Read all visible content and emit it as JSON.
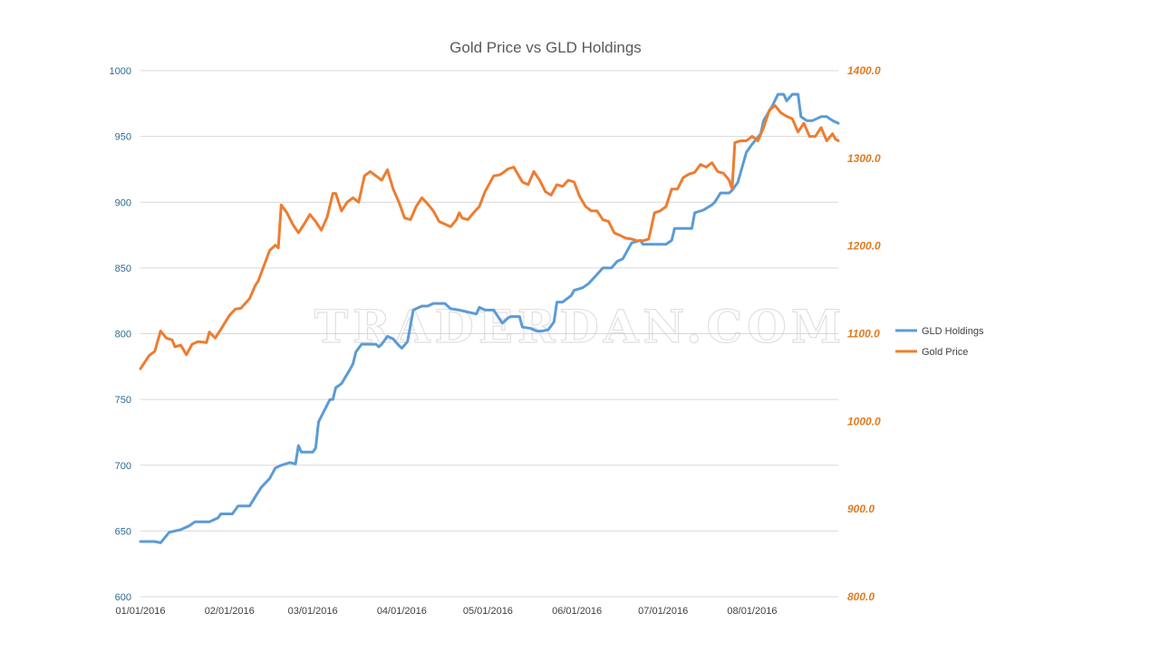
{
  "chart_data": {
    "type": "line",
    "title": "Gold Price vs GLD Holdings",
    "watermark": "TRADERDAN.COM",
    "x_range": [
      "01/01/2016",
      "08/31/2016"
    ],
    "x_ticks": [
      "01/01/2016",
      "02/01/2016",
      "03/01/2016",
      "04/01/2016",
      "05/01/2016",
      "06/01/2016",
      "07/01/2016",
      "08/01/2016"
    ],
    "y_left": {
      "min": 600,
      "max": 1000,
      "step": 50,
      "ticks": [
        "1000",
        "950",
        "900",
        "850",
        "800",
        "750",
        "700",
        "650",
        "600"
      ],
      "color": "#2e6b93"
    },
    "y_right": {
      "min": 800,
      "max": 1400,
      "step": 100,
      "ticks": [
        "1400.0",
        "1300.0",
        "1200.0",
        "1100.0",
        "1000.0",
        "900.0",
        "800.0"
      ],
      "color": "#e07b21"
    },
    "grid": true,
    "legend_position": "right",
    "series": [
      {
        "name": "GLD Holdings",
        "axis": "left",
        "color": "#5b9bd5",
        "points": [
          [
            "01/01/2016",
            642
          ],
          [
            "01/06/2016",
            642
          ],
          [
            "01/08/2016",
            641
          ],
          [
            "01/11/2016",
            649
          ],
          [
            "01/13/2016",
            650
          ],
          [
            "01/15/2016",
            651
          ],
          [
            "01/18/2016",
            654
          ],
          [
            "01/20/2016",
            657
          ],
          [
            "01/25/2016",
            657
          ],
          [
            "01/28/2016",
            660
          ],
          [
            "01/29/2016",
            663
          ],
          [
            "02/02/2016",
            663
          ],
          [
            "02/04/2016",
            669
          ],
          [
            "02/08/2016",
            669
          ],
          [
            "02/10/2016",
            676
          ],
          [
            "02/12/2016",
            683
          ],
          [
            "02/15/2016",
            690
          ],
          [
            "02/17/2016",
            698
          ],
          [
            "02/19/2016",
            700
          ],
          [
            "02/22/2016",
            702
          ],
          [
            "02/24/2016",
            701
          ],
          [
            "02/25/2016",
            715
          ],
          [
            "02/26/2016",
            710
          ],
          [
            "03/01/2016",
            710
          ],
          [
            "03/02/2016",
            713
          ],
          [
            "03/03/2016",
            733
          ],
          [
            "03/07/2016",
            750
          ],
          [
            "03/08/2016",
            750
          ],
          [
            "03/09/2016",
            759
          ],
          [
            "03/11/2016",
            762
          ],
          [
            "03/14/2016",
            773
          ],
          [
            "03/15/2016",
            777
          ],
          [
            "03/16/2016",
            786
          ],
          [
            "03/18/2016",
            792
          ],
          [
            "03/21/2016",
            792
          ],
          [
            "03/23/2016",
            792
          ],
          [
            "03/24/2016",
            790
          ],
          [
            "03/25/2016",
            792
          ],
          [
            "03/27/2016",
            798
          ],
          [
            "03/29/2016",
            796
          ],
          [
            "03/31/2016",
            791
          ],
          [
            "04/01/2016",
            789
          ],
          [
            "04/03/2016",
            794
          ],
          [
            "04/05/2016",
            818
          ],
          [
            "04/06/2016",
            819
          ],
          [
            "04/08/2016",
            821
          ],
          [
            "04/10/2016",
            821
          ],
          [
            "04/12/2016",
            823
          ],
          [
            "04/16/2016",
            823
          ],
          [
            "04/18/2016",
            819
          ],
          [
            "04/21/2016",
            818
          ],
          [
            "04/25/2016",
            816
          ],
          [
            "04/27/2016",
            815
          ],
          [
            "04/28/2016",
            820
          ],
          [
            "04/30/2016",
            818
          ],
          [
            "05/03/2016",
            818
          ],
          [
            "05/06/2016",
            808
          ],
          [
            "05/08/2016",
            812
          ],
          [
            "05/09/2016",
            813
          ],
          [
            "05/12/2016",
            813
          ],
          [
            "05/13/2016",
            805
          ],
          [
            "05/16/2016",
            804
          ],
          [
            "05/18/2016",
            802
          ],
          [
            "05/20/2016",
            802
          ],
          [
            "05/22/2016",
            803
          ],
          [
            "05/24/2016",
            809
          ],
          [
            "05/25/2016",
            824
          ],
          [
            "05/27/2016",
            824
          ],
          [
            "05/30/2016",
            829
          ],
          [
            "05/31/2016",
            833
          ],
          [
            "06/03/2016",
            835
          ],
          [
            "06/05/2016",
            838
          ],
          [
            "06/08/2016",
            845
          ],
          [
            "06/10/2016",
            850
          ],
          [
            "06/13/2016",
            850
          ],
          [
            "06/15/2016",
            855
          ],
          [
            "06/17/2016",
            857
          ],
          [
            "06/20/2016",
            869
          ],
          [
            "06/23/2016",
            871
          ],
          [
            "06/24/2016",
            868
          ],
          [
            "06/27/2016",
            868
          ],
          [
            "06/30/2016",
            868
          ],
          [
            "07/02/2016",
            868
          ],
          [
            "07/04/2016",
            871
          ],
          [
            "07/05/2016",
            880
          ],
          [
            "07/08/2016",
            880
          ],
          [
            "07/11/2016",
            880
          ],
          [
            "07/12/2016",
            892
          ],
          [
            "07/15/2016",
            894
          ],
          [
            "07/18/2016",
            898
          ],
          [
            "07/19/2016",
            900
          ],
          [
            "07/21/2016",
            907
          ],
          [
            "07/24/2016",
            907
          ],
          [
            "07/25/2016",
            909
          ],
          [
            "07/27/2016",
            915
          ],
          [
            "07/30/2016",
            938
          ],
          [
            "08/01/2016",
            944
          ],
          [
            "08/04/2016",
            952
          ],
          [
            "08/05/2016",
            962
          ],
          [
            "08/08/2016",
            973
          ],
          [
            "08/10/2016",
            982
          ],
          [
            "08/12/2016",
            982
          ],
          [
            "08/13/2016",
            977
          ],
          [
            "08/15/2016",
            982
          ],
          [
            "08/17/2016",
            982
          ],
          [
            "08/18/2016",
            965
          ],
          [
            "08/20/2016",
            962
          ],
          [
            "08/22/2016",
            962
          ],
          [
            "08/25/2016",
            965
          ],
          [
            "08/27/2016",
            965
          ],
          [
            "08/29/2016",
            962
          ],
          [
            "08/30/2016",
            961
          ],
          [
            "08/31/2016",
            960
          ]
        ]
      },
      {
        "name": "Gold Price",
        "axis": "right",
        "color": "#ed7d31",
        "points": [
          [
            "01/01/2016",
            1060
          ],
          [
            "01/04/2016",
            1075
          ],
          [
            "01/06/2016",
            1080
          ],
          [
            "01/08/2016",
            1103
          ],
          [
            "01/10/2016",
            1095
          ],
          [
            "01/12/2016",
            1093
          ],
          [
            "01/13/2016",
            1085
          ],
          [
            "01/15/2016",
            1087
          ],
          [
            "01/17/2016",
            1076
          ],
          [
            "01/19/2016",
            1088
          ],
          [
            "01/21/2016",
            1091
          ],
          [
            "01/24/2016",
            1090
          ],
          [
            "01/25/2016",
            1102
          ],
          [
            "01/27/2016",
            1095
          ],
          [
            "01/29/2016",
            1105
          ],
          [
            "02/01/2016",
            1121
          ],
          [
            "02/03/2016",
            1128
          ],
          [
            "02/05/2016",
            1129
          ],
          [
            "02/08/2016",
            1140
          ],
          [
            "02/10/2016",
            1155
          ],
          [
            "02/11/2016",
            1160
          ],
          [
            "02/15/2016",
            1195
          ],
          [
            "02/17/2016",
            1201
          ],
          [
            "02/18/2016",
            1198
          ],
          [
            "02/19/2016",
            1247
          ],
          [
            "02/21/2016",
            1238
          ],
          [
            "02/23/2016",
            1225
          ],
          [
            "02/25/2016",
            1215
          ],
          [
            "02/27/2016",
            1225
          ],
          [
            "02/29/2016",
            1236
          ],
          [
            "03/02/2016",
            1228
          ],
          [
            "03/04/2016",
            1218
          ],
          [
            "03/06/2016",
            1233
          ],
          [
            "03/08/2016",
            1260
          ],
          [
            "03/09/2016",
            1260
          ],
          [
            "03/11/2016",
            1240
          ],
          [
            "03/13/2016",
            1250
          ],
          [
            "03/15/2016",
            1255
          ],
          [
            "03/17/2016",
            1250
          ],
          [
            "03/19/2016",
            1280
          ],
          [
            "03/21/2016",
            1285
          ],
          [
            "03/23/2016",
            1280
          ],
          [
            "03/25/2016",
            1275
          ],
          [
            "03/27/2016",
            1287
          ],
          [
            "03/29/2016",
            1265
          ],
          [
            "03/31/2016",
            1250
          ],
          [
            "04/02/2016",
            1232
          ],
          [
            "04/04/2016",
            1230
          ],
          [
            "04/06/2016",
            1245
          ],
          [
            "04/08/2016",
            1255
          ],
          [
            "04/10/2016",
            1248
          ],
          [
            "04/12/2016",
            1240
          ],
          [
            "04/14/2016",
            1228
          ],
          [
            "04/16/2016",
            1225
          ],
          [
            "04/18/2016",
            1222
          ],
          [
            "04/20/2016",
            1230
          ],
          [
            "04/21/2016",
            1238
          ],
          [
            "04/22/2016",
            1232
          ],
          [
            "04/24/2016",
            1230
          ],
          [
            "04/26/2016",
            1238
          ],
          [
            "04/28/2016",
            1245
          ],
          [
            "04/30/2016",
            1262
          ],
          [
            "05/01/2016",
            1268
          ],
          [
            "05/03/2016",
            1280
          ],
          [
            "05/05/2016",
            1281
          ],
          [
            "05/06/2016",
            1283
          ],
          [
            "05/08/2016",
            1288
          ],
          [
            "05/10/2016",
            1290
          ],
          [
            "05/13/2016",
            1273
          ],
          [
            "05/15/2016",
            1270
          ],
          [
            "05/17/2016",
            1285
          ],
          [
            "05/19/2016",
            1275
          ],
          [
            "05/21/2016",
            1262
          ],
          [
            "05/23/2016",
            1258
          ],
          [
            "05/25/2016",
            1270
          ],
          [
            "05/27/2016",
            1268
          ],
          [
            "05/29/2016",
            1275
          ],
          [
            "05/31/2016",
            1273
          ],
          [
            "06/02/2016",
            1256
          ],
          [
            "06/04/2016",
            1245
          ],
          [
            "06/06/2016",
            1240
          ],
          [
            "06/08/2016",
            1240
          ],
          [
            "06/10/2016",
            1230
          ],
          [
            "06/12/2016",
            1228
          ],
          [
            "06/14/2016",
            1215
          ],
          [
            "06/16/2016",
            1212
          ],
          [
            "06/18/2016",
            1209
          ],
          [
            "06/20/2016",
            1208
          ],
          [
            "06/22/2016",
            1206
          ],
          [
            "06/24/2016",
            1206
          ],
          [
            "06/26/2016",
            1208
          ],
          [
            "06/28/2016",
            1238
          ],
          [
            "06/30/2016",
            1240
          ],
          [
            "07/02/2016",
            1245
          ],
          [
            "07/04/2016",
            1265
          ],
          [
            "07/06/2016",
            1265
          ],
          [
            "07/08/2016",
            1278
          ],
          [
            "07/10/2016",
            1282
          ],
          [
            "07/12/2016",
            1284
          ],
          [
            "07/14/2016",
            1293
          ],
          [
            "07/16/2016",
            1290
          ],
          [
            "07/18/2016",
            1295
          ],
          [
            "07/20/2016",
            1285
          ],
          [
            "07/22/2016",
            1283
          ],
          [
            "07/24/2016",
            1275
          ],
          [
            "07/25/2016",
            1265
          ],
          [
            "07/26/2016",
            1318
          ],
          [
            "07/28/2016",
            1320
          ],
          [
            "07/30/2016",
            1320
          ],
          [
            "08/01/2016",
            1325
          ],
          [
            "08/03/2016",
            1320
          ],
          [
            "08/05/2016",
            1335
          ],
          [
            "08/07/2016",
            1355
          ],
          [
            "08/09/2016",
            1360
          ],
          [
            "08/11/2016",
            1352
          ],
          [
            "08/13/2016",
            1348
          ],
          [
            "08/15/2016",
            1345
          ],
          [
            "08/17/2016",
            1330
          ],
          [
            "08/19/2016",
            1340
          ],
          [
            "08/21/2016",
            1325
          ],
          [
            "08/23/2016",
            1325
          ],
          [
            "08/25/2016",
            1335
          ],
          [
            "08/27/2016",
            1320
          ],
          [
            "08/29/2016",
            1328
          ],
          [
            "08/30/2016",
            1322
          ],
          [
            "08/31/2016",
            1320
          ]
        ]
      }
    ]
  }
}
